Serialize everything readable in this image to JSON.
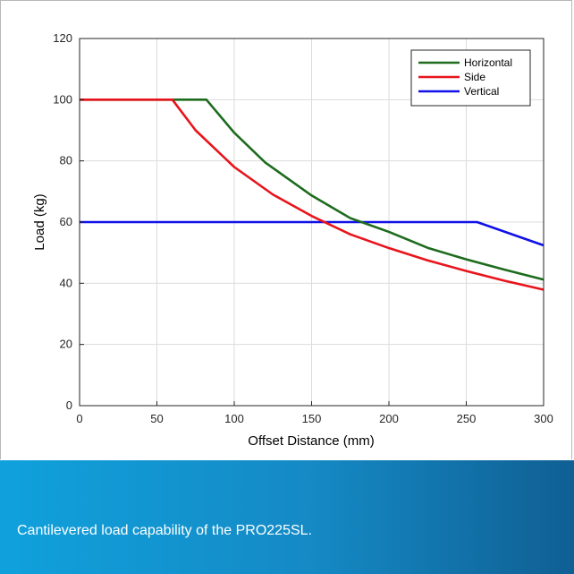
{
  "figure": {
    "caption": "Cantilevered load capability of the PRO225SL.",
    "caption_colors": [
      "#10a1dc",
      "#0f5f93"
    ]
  },
  "chart_data": {
    "type": "line",
    "title": "",
    "xlabel": "Offset Distance (mm)",
    "ylabel": "Load (kg)",
    "xlim": [
      0,
      300
    ],
    "ylim": [
      0,
      120
    ],
    "x_ticks": [
      "0",
      "50",
      "100",
      "150",
      "200",
      "250",
      "300"
    ],
    "y_ticks": [
      "0",
      "20",
      "40",
      "60",
      "80",
      "100",
      "120"
    ],
    "grid": true,
    "legend_position": "top-right",
    "series": [
      {
        "name": "Horizontal",
        "color": "#1e6b1e",
        "points": [
          [
            0,
            100
          ],
          [
            82,
            100
          ],
          [
            100,
            89.2
          ],
          [
            120,
            79.5
          ],
          [
            150,
            68.7
          ],
          [
            175,
            61.3
          ],
          [
            200,
            56.8
          ],
          [
            225,
            51.6
          ],
          [
            250,
            47.8
          ],
          [
            275,
            44.4
          ],
          [
            300,
            41.2
          ]
        ]
      },
      {
        "name": "Side",
        "color": "#e8141c",
        "points": [
          [
            0,
            100
          ],
          [
            60,
            100
          ],
          [
            75,
            90
          ],
          [
            100,
            78
          ],
          [
            125,
            69
          ],
          [
            150,
            62
          ],
          [
            175,
            56
          ],
          [
            200,
            51.5
          ],
          [
            225,
            47.5
          ],
          [
            250,
            44
          ],
          [
            275,
            40.8
          ],
          [
            300,
            37.9
          ]
        ]
      },
      {
        "name": "Vertical",
        "color": "#1010e8",
        "points": [
          [
            0,
            60
          ],
          [
            257,
            60
          ],
          [
            300,
            52.4
          ]
        ]
      }
    ]
  }
}
